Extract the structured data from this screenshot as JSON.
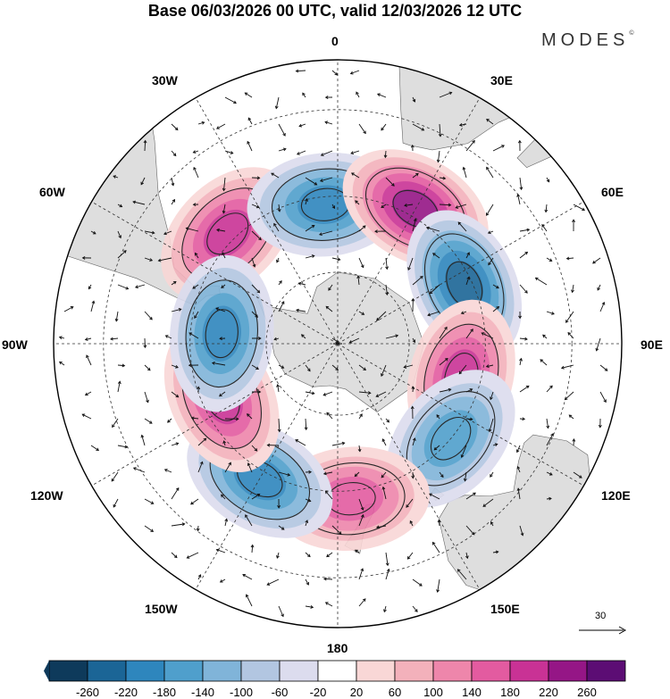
{
  "header": {
    "title": "Base 06/03/2026 00 UTC, valid 12/03/2026 12 UTC",
    "brand": "MODES",
    "brand_mark": "©"
  },
  "map": {
    "projection": "south-polar-stereographic",
    "longitude_labels": {
      "top": "0",
      "top_right": "30E",
      "upper_right": "60E",
      "right": "90E",
      "lower_right": "120E",
      "bottom_right": "150E",
      "bottom": "180",
      "bottom_left": "150W",
      "lower_left": "120W",
      "left": "90W",
      "upper_left": "60W",
      "top_left": "30W"
    },
    "reference_vector": "30",
    "anomaly_centers": [
      {
        "name": "positive-center-south-atlantic",
        "lon": -45,
        "lat": -48,
        "value": 200,
        "sign": "+"
      },
      {
        "name": "negative-center-west-weddell",
        "lon": -5,
        "lat": -52,
        "value": -180,
        "sign": "-"
      },
      {
        "name": "positive-center-south-africa",
        "lon": 30,
        "lat": -48,
        "value": 240,
        "sign": "+"
      },
      {
        "name": "negative-center-indian",
        "lon": 65,
        "lat": -52,
        "value": -220,
        "sign": "-"
      },
      {
        "name": "positive-center-south-indian",
        "lon": 105,
        "lat": -55,
        "value": 180,
        "sign": "+"
      },
      {
        "name": "negative-center-south-australia",
        "lon": 130,
        "lat": -50,
        "value": -160,
        "sign": "-"
      },
      {
        "name": "positive-center-new-zealand",
        "lon": 175,
        "lat": -48,
        "value": 140,
        "sign": "+"
      },
      {
        "name": "negative-center-south-pacific",
        "lon": -150,
        "lat": -48,
        "value": -180,
        "sign": "-"
      },
      {
        "name": "positive-center-southeast-pacific",
        "lon": -115,
        "lat": -55,
        "value": 200,
        "sign": "+"
      },
      {
        "name": "negative-center-bellingshausen",
        "lon": -85,
        "lat": -58,
        "value": -200,
        "sign": "-"
      }
    ]
  },
  "colorbar": {
    "ticks": [
      "-260",
      "-220",
      "-180",
      "-140",
      "-100",
      "-60",
      "-20",
      "20",
      "60",
      "100",
      "140",
      "180",
      "220",
      "260"
    ],
    "colors": [
      "#0e3a5b",
      "#1b6596",
      "#2e86bd",
      "#4f9fcc",
      "#80b4d9",
      "#b2c6e1",
      "#dcdcee",
      "#ffffff",
      "#f9d7d6",
      "#f3b1bb",
      "#ee86ab",
      "#e35ba0",
      "#c93295",
      "#951686",
      "#5c0d74"
    ]
  }
}
